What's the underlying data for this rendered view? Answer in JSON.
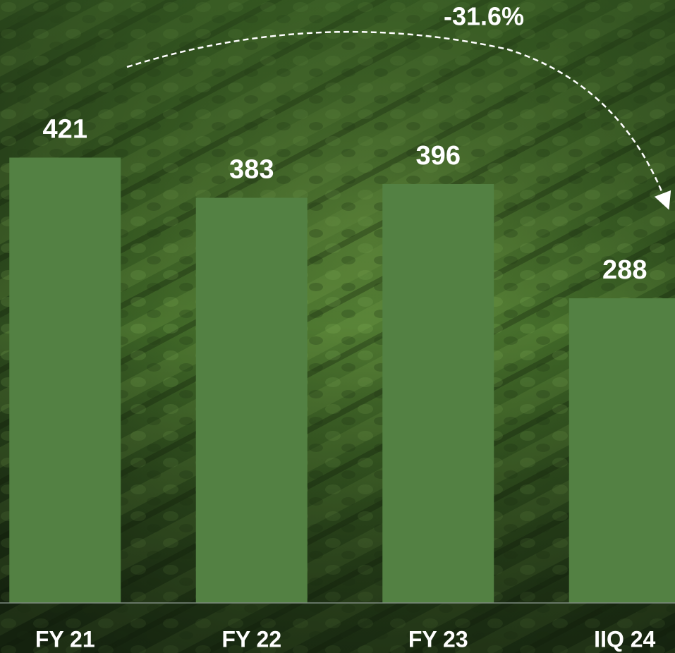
{
  "chart_data": {
    "type": "bar",
    "categories": [
      "FY 21",
      "FY 22",
      "FY 23",
      "IIQ 24"
    ],
    "values": [
      421,
      383,
      396,
      288
    ],
    "color": "#538143",
    "ylim": [
      0,
      450
    ],
    "annotation": "-31.6%"
  }
}
